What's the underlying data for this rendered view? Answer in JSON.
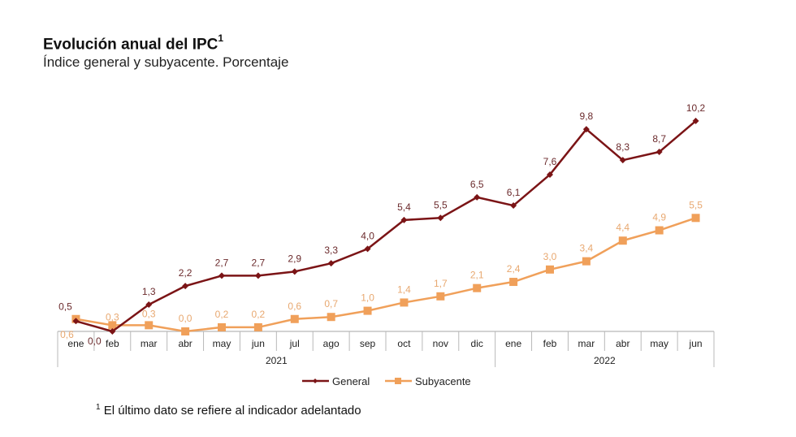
{
  "header": {
    "title": "Evolución anual del IPC",
    "title_sup": "1",
    "subtitle": "Índice general y subyacente. Porcentaje"
  },
  "footnote": {
    "sup": "1",
    "text": "El último dato se refiere al indicador adelantado"
  },
  "chart_data": {
    "type": "line",
    "title": "Evolución anual del IPC",
    "subtitle": "Índice general y subyacente. Porcentaje",
    "xlabel": "",
    "ylabel": "",
    "categories": [
      "ene",
      "feb",
      "mar",
      "abr",
      "may",
      "jun",
      "jul",
      "ago",
      "sep",
      "oct",
      "nov",
      "dic",
      "ene",
      "feb",
      "mar",
      "abr",
      "may",
      "jun"
    ],
    "year_groups": [
      {
        "label": "2021",
        "count": 12
      },
      {
        "label": "2022",
        "count": 6
      }
    ],
    "series": [
      {
        "name": "General",
        "color": "#7b1416",
        "marker": "diamond",
        "values": [
          0.5,
          0.0,
          1.3,
          2.2,
          2.7,
          2.7,
          2.9,
          3.3,
          4.0,
          5.4,
          5.5,
          6.5,
          6.1,
          7.6,
          9.8,
          8.3,
          8.7,
          10.2
        ],
        "labels": [
          "0,5",
          "0,0",
          "1,3",
          "2,2",
          "2,7",
          "2,7",
          "2,9",
          "3,3",
          "4,0",
          "5,4",
          "5,5",
          "6,5",
          "6,1",
          "7,6",
          "9,8",
          "8,3",
          "8,7",
          "10,2"
        ]
      },
      {
        "name": "Subyacente",
        "color": "#f0a05a",
        "marker": "square",
        "values": [
          0.6,
          0.3,
          0.3,
          0.0,
          0.2,
          0.2,
          0.6,
          0.7,
          1.0,
          1.4,
          1.7,
          2.1,
          2.4,
          3.0,
          3.4,
          4.4,
          4.9,
          5.5
        ],
        "labels": [
          "0,6",
          "0,3",
          "0,3",
          "0,0",
          "0,2",
          "0,2",
          "0,6",
          "0,7",
          "1,0",
          "1,4",
          "1,7",
          "2,1",
          "2,4",
          "3,0",
          "3,4",
          "4,4",
          "4,9",
          "5,5"
        ]
      }
    ],
    "ylim": [
      0,
      10.2
    ],
    "grid": false,
    "legend": "bottom-center",
    "label_color_general": "#6b2a2c",
    "label_color_subyacente": "#e8a870"
  }
}
